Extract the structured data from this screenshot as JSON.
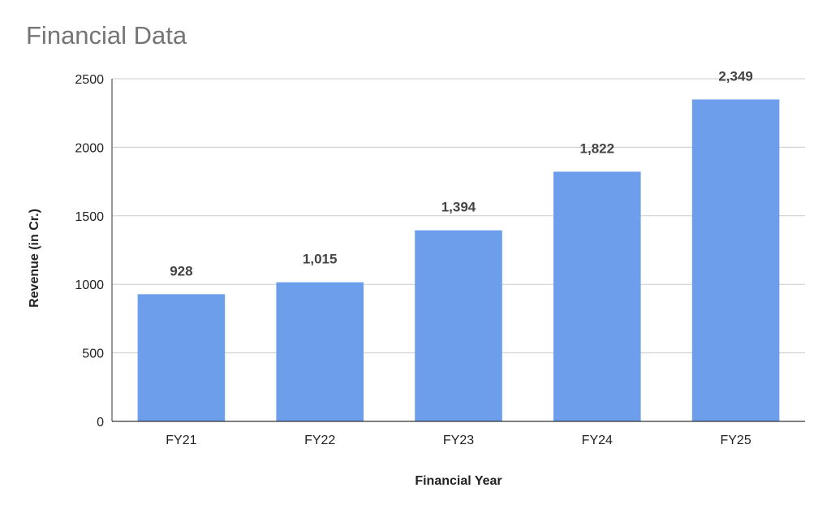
{
  "chart_data": {
    "type": "bar",
    "title": "Financial Data",
    "xlabel": "Financial Year",
    "ylabel": "Revenue (in Cr.)",
    "categories": [
      "FY21",
      "FY22",
      "FY23",
      "FY24",
      "FY25"
    ],
    "values": [
      928,
      1015,
      1394,
      1822,
      2349
    ],
    "data_labels": [
      "928",
      "1,015",
      "1,394",
      "1,822",
      "2,349"
    ],
    "ylim": [
      0,
      2500
    ],
    "yticks": [
      0,
      500,
      1000,
      1500,
      2000,
      2500
    ],
    "grid": true,
    "legend": "none",
    "bar_color": "#6d9eeb"
  }
}
